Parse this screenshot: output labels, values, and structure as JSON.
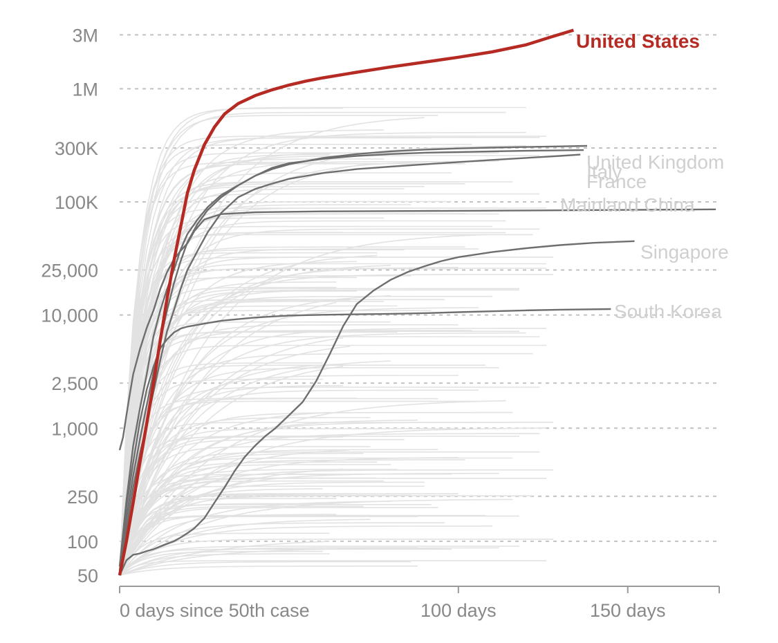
{
  "chart_data": {
    "type": "line",
    "title": "",
    "xlabel": "",
    "ylabel": "",
    "y_scale": "log",
    "xlim": [
      0,
      177
    ],
    "ylim": [
      40,
      4600000
    ],
    "x_ticks": [
      {
        "value": 0,
        "label": "0 days since 50th case"
      },
      {
        "value": 100,
        "label": "100 days"
      },
      {
        "value": 150,
        "label": "150 days"
      },
      {
        "value": 177,
        "label": ""
      }
    ],
    "y_ticks": [
      {
        "value": 50,
        "label": "50"
      },
      {
        "value": 100,
        "label": "100"
      },
      {
        "value": 250,
        "label": "250"
      },
      {
        "value": 1000,
        "label": "1,000"
      },
      {
        "value": 2500,
        "label": "2,500"
      },
      {
        "value": 10000,
        "label": "10,000"
      },
      {
        "value": 25000,
        "label": "25,000"
      },
      {
        "value": 100000,
        "label": "100K"
      },
      {
        "value": 300000,
        "label": "300K"
      },
      {
        "value": 1000000,
        "label": "1M"
      },
      {
        "value": 3000000,
        "label": "3M"
      }
    ],
    "colors": {
      "highlight": "#6e6e6e",
      "us": "#b52a23",
      "background": "#e2e2e2"
    },
    "series": [
      {
        "name": "United States",
        "role": "us",
        "label_x": 134,
        "label_y": 3500000,
        "x": [
          0,
          2,
          4,
          6,
          8,
          10,
          12,
          14,
          16,
          18,
          20,
          22,
          25,
          28,
          31,
          35,
          40,
          45,
          50,
          55,
          60,
          70,
          80,
          90,
          100,
          110,
          120,
          127,
          134
        ],
        "y": [
          50,
          100,
          220,
          500,
          1100,
          2500,
          6000,
          14000,
          30000,
          60000,
          120000,
          190000,
          320000,
          460000,
          600000,
          740000,
          870000,
          980000,
          1080000,
          1170000,
          1250000,
          1400000,
          1560000,
          1720000,
          1900000,
          2120000,
          2450000,
          2850000,
          3300000
        ]
      },
      {
        "name": "United Kingdom",
        "role": "highlight",
        "label_x": 138,
        "label_y": 315000,
        "x": [
          0,
          2,
          4,
          6,
          8,
          10,
          12,
          14,
          16,
          18,
          20,
          23,
          26,
          30,
          35,
          40,
          45,
          50,
          60,
          70,
          80,
          90,
          100,
          110,
          120,
          130,
          138
        ],
        "y": [
          55,
          160,
          380,
          800,
          1600,
          3100,
          6000,
          11000,
          19000,
          30000,
          44000,
          64000,
          85000,
          110000,
          140000,
          170000,
          195000,
          215000,
          245000,
          265000,
          280000,
          290000,
          297000,
          302000,
          306000,
          310000,
          313000
        ]
      },
      {
        "name": "Italy",
        "role": "highlight",
        "label_x": 137,
        "label_y": 287000,
        "x": [
          0,
          2,
          4,
          6,
          8,
          10,
          12,
          14,
          16,
          18,
          20,
          23,
          26,
          30,
          35,
          40,
          45,
          50,
          60,
          70,
          80,
          90,
          100,
          110,
          120,
          137
        ],
        "y": [
          60,
          230,
          700,
          1500,
          3000,
          6500,
          11000,
          17000,
          25000,
          38000,
          52000,
          70000,
          90000,
          115000,
          140000,
          170000,
          200000,
          220000,
          240000,
          255000,
          265000,
          272000,
          276000,
          280000,
          283000,
          287000
        ]
      },
      {
        "name": "France",
        "role": "highlight",
        "label_x": 136,
        "label_y": 262000,
        "x": [
          0,
          2,
          4,
          6,
          8,
          10,
          12,
          14,
          16,
          18,
          20,
          23,
          26,
          30,
          35,
          40,
          45,
          50,
          60,
          70,
          80,
          90,
          100,
          110,
          120,
          130,
          136
        ],
        "y": [
          60,
          130,
          300,
          600,
          1100,
          2100,
          4000,
          7200,
          11000,
          17000,
          25000,
          37000,
          54000,
          80000,
          110000,
          130000,
          145000,
          160000,
          180000,
          195000,
          205000,
          215000,
          225000,
          235000,
          245000,
          255000,
          262000
        ]
      },
      {
        "name": "Mainland China",
        "role": "highlight",
        "label_x": 176,
        "label_y": 90000,
        "x": [
          0,
          1,
          2,
          3,
          4,
          6,
          8,
          10,
          12,
          14,
          16,
          18,
          20,
          22,
          25,
          30,
          40,
          60,
          80,
          100,
          120,
          150,
          176
        ],
        "y": [
          640,
          830,
          1300,
          2000,
          3000,
          5000,
          7700,
          11000,
          17000,
          24000,
          31000,
          37000,
          43000,
          55000,
          70000,
          78000,
          81000,
          82500,
          83000,
          83500,
          84000,
          85000,
          86000
        ]
      },
      {
        "name": "Singapore",
        "role": "highlight",
        "label_x": 152,
        "label_y": 45000,
        "x": [
          0,
          2,
          4,
          6,
          8,
          10,
          12,
          14,
          16,
          18,
          20,
          22,
          25,
          28,
          31,
          34,
          37,
          40,
          43,
          46,
          50,
          54,
          58,
          62,
          66,
          70,
          75,
          80,
          85,
          90,
          95,
          100,
          110,
          120,
          130,
          140,
          152
        ],
        "y": [
          50,
          68,
          76,
          78,
          82,
          85,
          90,
          95,
          100,
          108,
          118,
          130,
          160,
          220,
          300,
          420,
          560,
          700,
          850,
          1000,
          1300,
          1700,
          2600,
          4500,
          8000,
          12500,
          16500,
          20500,
          24000,
          27000,
          30000,
          32500,
          36000,
          39000,
          41500,
          43500,
          45000
        ]
      },
      {
        "name": "South Korea",
        "role": "highlight",
        "label_x": 145,
        "label_y": 11300,
        "x": [
          0,
          2,
          4,
          6,
          8,
          10,
          12,
          14,
          16,
          18,
          20,
          25,
          30,
          35,
          40,
          45,
          50,
          60,
          70,
          80,
          90,
          100,
          110,
          120,
          130,
          145
        ],
        "y": [
          50,
          200,
          500,
          1150,
          2200,
          3500,
          5100,
          6100,
          7000,
          7600,
          7900,
          8400,
          8900,
          9200,
          9500,
          9700,
          9900,
          10050,
          10150,
          10250,
          10400,
          10600,
          10800,
          11000,
          11150,
          11300
        ]
      }
    ]
  },
  "labels": {
    "us": "United States",
    "uk": "United Kingdom",
    "italy": "Italy",
    "france": "France",
    "china": "Mainland China",
    "singapore": "Singapore",
    "korea": "South Korea"
  }
}
